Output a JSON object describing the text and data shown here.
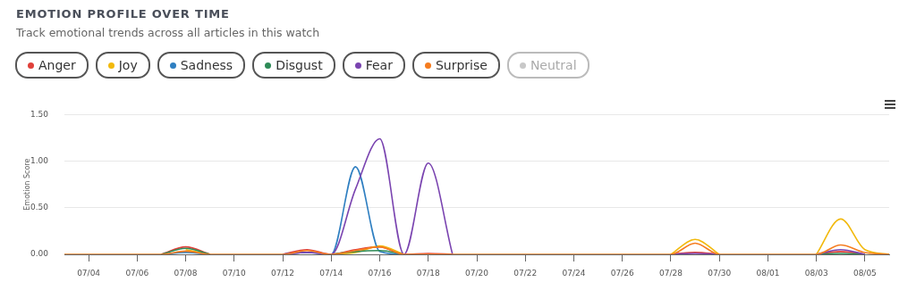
{
  "chart_data": {
    "type": "line",
    "title": "EMOTION PROFILE OVER TIME",
    "subtitle": "Track emotional trends across all articles in this watch",
    "ylabel": "Emotion Score",
    "x": [
      "--07-03",
      "--07-04",
      "--07-05",
      "--07-06",
      "--07-07",
      "--07-08",
      "--07-09",
      "--07-10",
      "--07-11",
      "--07-12",
      "--07-13",
      "--07-14",
      "--07-15",
      "--07-16",
      "--07-17",
      "--07-18",
      "--07-19",
      "--07-20",
      "--07-21",
      "--07-22",
      "--07-23",
      "--07-24",
      "--07-25",
      "--07-26",
      "--07-27",
      "--07-28",
      "--07-29",
      "--07-30",
      "--07-31",
      "--08-01",
      "--08-02",
      "--08-03",
      "--08-04",
      "--08-05",
      "--08-06"
    ],
    "series": [
      {
        "name": "Anger",
        "color": "#e0403a",
        "values": [
          null,
          null,
          null,
          null,
          0,
          0.08,
          0,
          null,
          null,
          0,
          0.05,
          0,
          0.05,
          0.08,
          0,
          0.01,
          0,
          null,
          null,
          null,
          null,
          null,
          null,
          null,
          null,
          0,
          0.02,
          0,
          null,
          null,
          null,
          0,
          0.03,
          0,
          null
        ]
      },
      {
        "name": "Joy",
        "color": "#f2b90c",
        "values": [
          null,
          null,
          null,
          null,
          null,
          0.05,
          0,
          null,
          null,
          null,
          null,
          0,
          0.02,
          0.09,
          0,
          null,
          null,
          null,
          null,
          null,
          null,
          null,
          null,
          null,
          null,
          0,
          0.16,
          0,
          null,
          null,
          null,
          0,
          0.38,
          0.05,
          0
        ]
      },
      {
        "name": "Sadness",
        "color": "#2f7fc1",
        "values": [
          null,
          null,
          null,
          null,
          0,
          0.02,
          0,
          null,
          null,
          0,
          0.02,
          0,
          0.94,
          0.03,
          0,
          null,
          null,
          null,
          null,
          null,
          null,
          null,
          null,
          null,
          null,
          null,
          null,
          null,
          null,
          null,
          null,
          null,
          null,
          null,
          null
        ]
      },
      {
        "name": "Disgust",
        "color": "#2e8b57",
        "values": [
          null,
          null,
          null,
          null,
          0,
          0.065,
          0,
          null,
          null,
          null,
          null,
          0,
          0.03,
          0.04,
          0,
          null,
          null,
          null,
          null,
          null,
          null,
          null,
          null,
          null,
          null,
          null,
          null,
          null,
          null,
          null,
          null,
          0,
          0.01,
          0,
          null
        ]
      },
      {
        "name": "Fear",
        "color": "#7a44b0",
        "values": [
          null,
          null,
          null,
          null,
          null,
          null,
          null,
          null,
          null,
          0,
          0.02,
          0,
          0.7,
          1.24,
          0,
          0.98,
          0,
          null,
          null,
          null,
          null,
          null,
          null,
          null,
          null,
          0,
          0.01,
          0,
          null,
          null,
          null,
          0,
          0.05,
          0,
          null
        ]
      },
      {
        "name": "Surprise",
        "color": "#f57c1f",
        "values": [
          0,
          0,
          0,
          0,
          0,
          0.035,
          0,
          0,
          0,
          0,
          0.04,
          0,
          0.04,
          0.08,
          0,
          0,
          0,
          0,
          0,
          0,
          0,
          0,
          0,
          0,
          0,
          0,
          0.12,
          0,
          0,
          0,
          0,
          0,
          0.1,
          0.02,
          0
        ]
      },
      {
        "name": "Neutral",
        "color": "#c8c8c8",
        "values": [
          null,
          null,
          null,
          null,
          null,
          null,
          null,
          null,
          null,
          null,
          null,
          null,
          null,
          null,
          null,
          null,
          null,
          null,
          null,
          null,
          null,
          null,
          null,
          null,
          null,
          null,
          null,
          null,
          null,
          null,
          null,
          null,
          null,
          null,
          null
        ]
      }
    ],
    "xlim": [
      "--07-03",
      "--08-06"
    ],
    "xticks": [
      {
        "value": "--07-04",
        "label": "07/04"
      },
      {
        "value": "--07-06",
        "label": "07/06"
      },
      {
        "value": "--07-08",
        "label": "07/08"
      },
      {
        "value": "--07-10",
        "label": "07/10"
      },
      {
        "value": "--07-12",
        "label": "07/12"
      },
      {
        "value": "--07-14",
        "label": "07/14"
      },
      {
        "value": "--07-16",
        "label": "07/16"
      },
      {
        "value": "--07-18",
        "label": "07/18"
      },
      {
        "value": "--07-20",
        "label": "07/20"
      },
      {
        "value": "--07-22",
        "label": "07/22"
      },
      {
        "value": "--07-24",
        "label": "07/24"
      },
      {
        "value": "--07-26",
        "label": "07/26"
      },
      {
        "value": "--07-28",
        "label": "07/28"
      },
      {
        "value": "--07-30",
        "label": "07/30"
      },
      {
        "value": "--08-01",
        "label": "08/01"
      },
      {
        "value": "--08-03",
        "label": "08/03"
      },
      {
        "value": "--08-05",
        "label": "08/05"
      }
    ],
    "ylim": [
      0,
      1.5
    ],
    "yticks": [
      {
        "value": 0,
        "label": "0.00"
      },
      {
        "value": 0.5,
        "label": "0.50"
      },
      {
        "value": 1,
        "label": "1.00"
      },
      {
        "value": 1.5,
        "label": "1.50"
      }
    ],
    "grid": "y",
    "legend": "top",
    "marker": "none",
    "line_style": "solid"
  }
}
